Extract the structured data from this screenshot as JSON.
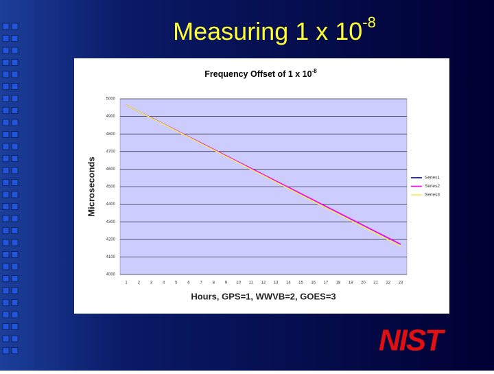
{
  "chart_data": {
    "type": "line",
    "slide_title": "Measuring 1 x 10",
    "slide_title_superscript": "-8",
    "title": "Frequency Offset of 1 x 10",
    "title_superscript": "-8",
    "x_label": "Hours, GPS=1, WWVB=2, GOES=3",
    "y_label": "Microseconds",
    "logo": "NIST",
    "categories": [
      "1",
      "2",
      "3",
      "4",
      "5",
      "6",
      "7",
      "8",
      "9",
      "10",
      "11",
      "12",
      "13",
      "14",
      "15",
      "16",
      "17",
      "18",
      "19",
      "20",
      "21",
      "22",
      "23"
    ],
    "series": [
      {
        "name": "Series1",
        "color": "#000080",
        "values": [
          4964,
          4928,
          4892,
          4856,
          4820,
          4784,
          4748,
          4712,
          4676,
          4640,
          4604,
          4568,
          4532,
          4496,
          4460,
          4424,
          4388,
          4352,
          4316,
          4280,
          4244,
          4208,
          4172
        ]
      },
      {
        "name": "Series2",
        "color": "#ff00ff",
        "values": [
          4964,
          4928,
          4892,
          4856,
          4820,
          4784,
          4748,
          4712,
          4676,
          4640,
          4604,
          4568,
          4532,
          4496,
          4460,
          4424,
          4388,
          4352,
          4316,
          4280,
          4244,
          4208,
          4172
        ]
      },
      {
        "name": "Series3",
        "color": "#eeee55",
        "values": [
          4964,
          4928,
          4891,
          4855,
          4818,
          4782,
          4745,
          4709,
          4672,
          4636,
          4599,
          4563,
          4526,
          4490,
          4453,
          4417,
          4380,
          4344,
          4307,
          4271,
          4234,
          4198,
          4161
        ]
      }
    ],
    "ylim": [
      4000,
      5000
    ],
    "yticks": [
      4000,
      4100,
      4200,
      4300,
      4400,
      4500,
      4600,
      4700,
      4800,
      4900,
      5000
    ],
    "grid": true,
    "legend": "right"
  }
}
